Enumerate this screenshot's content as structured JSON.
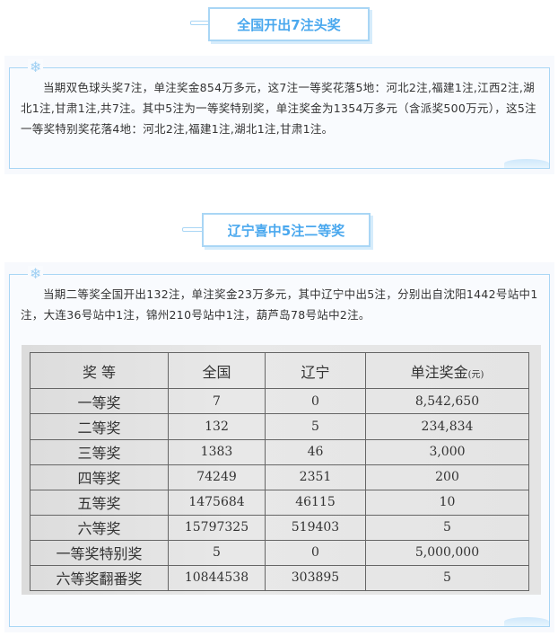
{
  "section1": {
    "title": "全国开出7注头奖",
    "text": "当期双色球头奖7注，单注奖金854万多元，这7注一等奖花落5地：河北2注,福建1注,江西2注,湖北1注,甘肃1注,共7注。其中5注为一等奖特别奖，单注奖金为1354万多元（含派奖500万元），这5注一等奖特别奖花落4地：河北2注,福建1注,湖北1注,甘肃1注。"
  },
  "section2": {
    "title": "辽宁喜中5注二等奖",
    "text": "当期二等奖全国开出132注，单注奖金23万多元，其中辽宁中出5注，分别出自沈阳1442号站中1注，大连36号站中1注，锦州210号站中1注，葫芦岛78号站中2注。"
  },
  "table": {
    "headers": [
      "奖 等",
      "全国",
      "辽宁",
      "单注奖金"
    ],
    "unit": "(元)",
    "rows": [
      [
        "一等奖",
        "7",
        "0",
        "8,542,650"
      ],
      [
        "二等奖",
        "132",
        "5",
        "234,834"
      ],
      [
        "三等奖",
        "1383",
        "46",
        "3,000"
      ],
      [
        "四等奖",
        "74249",
        "2351",
        "200"
      ],
      [
        "五等奖",
        "1475684",
        "46115",
        "10"
      ],
      [
        "六等奖",
        "15797325",
        "519403",
        "5"
      ],
      [
        "一等奖特别奖",
        "5",
        "0",
        "5,000,000"
      ],
      [
        "六等奖翻番奖",
        "10844538",
        "303895",
        "5"
      ]
    ]
  },
  "colors": {
    "accent": "#4aa8ee",
    "border": "#a9d6f5"
  }
}
